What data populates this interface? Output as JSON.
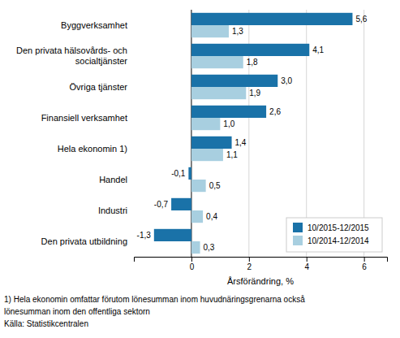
{
  "chart_data": {
    "type": "bar",
    "orientation": "horizontal",
    "categories": [
      "Byggverksamhet",
      "Den privata hälsovårds- och\nsocialtjänster",
      "Övriga tjänster",
      "Finansiell verksamhet",
      "Hela ekonomin 1)",
      "Handel",
      "Industri",
      "Den privata utbildning"
    ],
    "series": [
      {
        "name": "10/2015-12/2015",
        "color": "#1a72a8",
        "values": [
          5.6,
          4.1,
          3.0,
          2.6,
          1.4,
          -0.1,
          -0.7,
          -1.3
        ],
        "value_labels": [
          "5,6",
          "4,1",
          "3,0",
          "2,6",
          "1,4",
          "-0,1",
          "-0,7",
          "-1,3"
        ]
      },
      {
        "name": "10/2014-12/2014",
        "color": "#a8cfe0",
        "values": [
          1.3,
          1.8,
          1.9,
          1.0,
          1.1,
          0.5,
          0.4,
          0.3
        ],
        "value_labels": [
          "1,3",
          "1,8",
          "1,9",
          "1,0",
          "1,1",
          "0,5",
          "0,4",
          "0,3"
        ]
      }
    ],
    "xlabel": "Årsförändring, %",
    "xlim": [
      -2.0,
      6.8
    ],
    "xticks": [
      0,
      2,
      4,
      6
    ],
    "grid": true,
    "legend": "lower right",
    "data_labels": true,
    "annotations": [
      "1) Hela ekonomin omfattar förutom lönesumman inom huvudnäringsgrenarna också",
      "lönesumman inom den offentliga sektorn",
      "Källa: Statistikcentralen"
    ]
  }
}
